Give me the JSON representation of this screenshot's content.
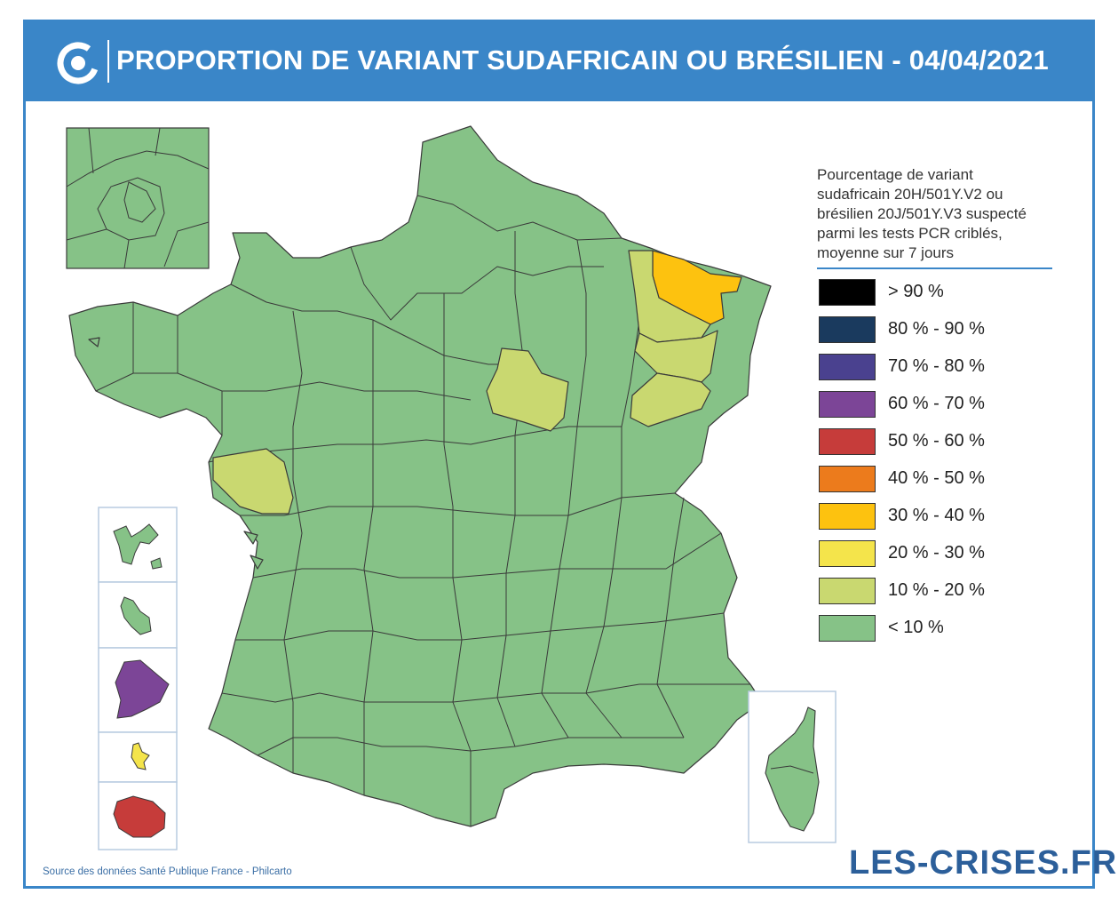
{
  "header": {
    "title": "PROPORTION DE VARIANT SUDAFRICAIN OU BRÉSILIEN - 04/04/2021"
  },
  "legend": {
    "description": "Pourcentage de variant\nsudafricain 20H/501Y.V2 ou\nbrésilien 20J/501Y.V3 suspecté\nparmi les tests PCR criblés,\nmoyenne sur 7 jours",
    "items": [
      {
        "label": "> 90 %",
        "color": "#000000"
      },
      {
        "label": "80 % - 90 %",
        "color": "#1a3a5e"
      },
      {
        "label": "70 % - 80 %",
        "color": "#4a418f"
      },
      {
        "label": "60 % - 70 %",
        "color": "#7c4597"
      },
      {
        "label": "50 % - 60 %",
        "color": "#c63c3a"
      },
      {
        "label": "40 % - 50 %",
        "color": "#ec7b1c"
      },
      {
        "label": "30 % - 40 %",
        "color": "#fdc20f"
      },
      {
        "label": "20 % - 30 %",
        "color": "#f4e44b"
      },
      {
        "label": "10 % - 20 %",
        "color": "#c9d870"
      },
      {
        "label": "< 10 %",
        "color": "#86c287"
      }
    ]
  },
  "regions": {
    "metropole_default": "< 10 %",
    "highlighted": [
      {
        "name": "Bas-Rhin",
        "category": "30 % - 40 %"
      },
      {
        "name": "Moselle",
        "category": "10 % - 20 %"
      },
      {
        "name": "Meurthe-et-Moselle",
        "category": "10 % - 20 %"
      },
      {
        "name": "Vosges",
        "category": "10 % - 20 %"
      },
      {
        "name": "Haute-Saône",
        "category": "10 % - 20 %"
      },
      {
        "name": "Aube",
        "category": "10 % - 20 %"
      },
      {
        "name": "Vendée",
        "category": "10 % - 20 %"
      }
    ],
    "overseas": [
      {
        "name": "Guadeloupe",
        "category": "< 10 %"
      },
      {
        "name": "Martinique",
        "category": "< 10 %"
      },
      {
        "name": "Guyane",
        "category": "60 % - 70 %"
      },
      {
        "name": "Mayotte",
        "category": "20 % - 30 %"
      },
      {
        "name": "La Réunion",
        "category": "50 % - 60 %"
      }
    ],
    "corse": "< 10 %",
    "ile_de_france_inset": "< 10 %"
  },
  "footer": {
    "source": "Source des données Santé Publique France - Philcarto",
    "brand": "LES-CRISES.FR"
  }
}
